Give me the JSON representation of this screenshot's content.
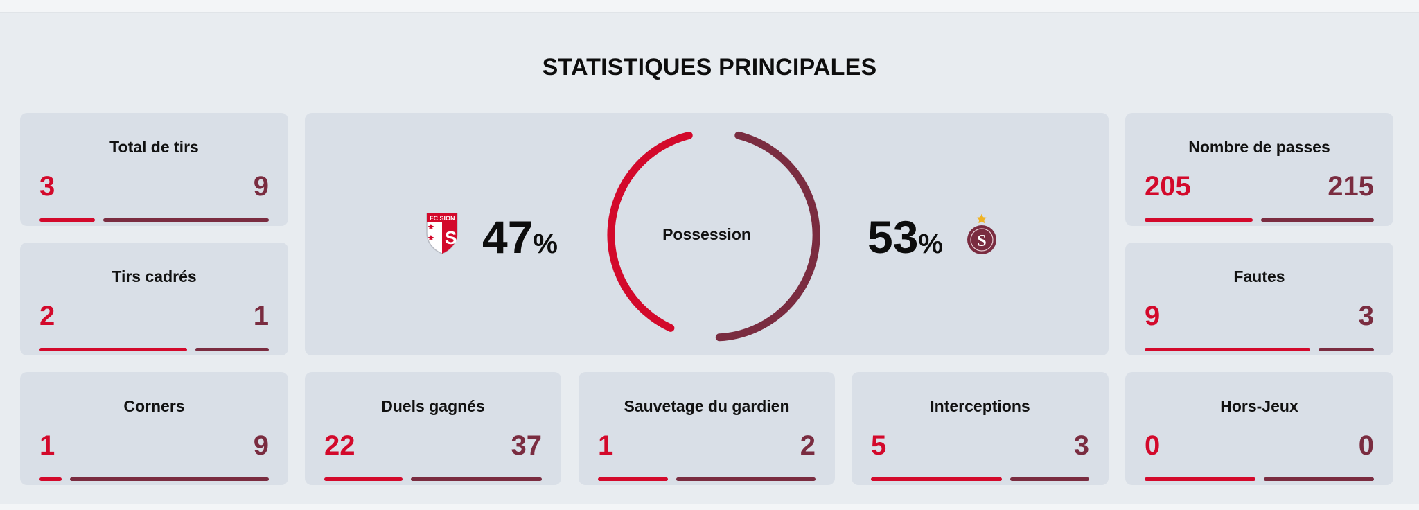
{
  "title": "STATISTIQUES PRINCIPALES",
  "colors": {
    "home": "#d3092b",
    "away": "#7a2c40"
  },
  "possession": {
    "label": "Possession",
    "home": {
      "value": "47",
      "unit": "%",
      "team_logo": "fc-sion-shield-icon",
      "logo_text": "FC SION",
      "logo_letter": "S"
    },
    "away": {
      "value": "53",
      "unit": "%",
      "team_logo": "servette-crest-icon",
      "logo_letter": "S"
    }
  },
  "stats": [
    {
      "key": "shots",
      "label": "Total de tirs",
      "home": "3",
      "away": "9"
    },
    {
      "key": "shots-on-target",
      "label": "Tirs cadrés",
      "home": "2",
      "away": "1"
    },
    {
      "key": "passes",
      "label": "Nombre de passes",
      "home": "205",
      "away": "215"
    },
    {
      "key": "fouls",
      "label": "Fautes",
      "home": "9",
      "away": "3"
    },
    {
      "key": "corners",
      "label": "Corners",
      "home": "1",
      "away": "9"
    },
    {
      "key": "duels",
      "label": "Duels gagnés",
      "home": "22",
      "away": "37"
    },
    {
      "key": "saves",
      "label": "Sauvetage du gardien",
      "home": "1",
      "away": "2"
    },
    {
      "key": "interceptions",
      "label": "Interceptions",
      "home": "5",
      "away": "3"
    },
    {
      "key": "offsides",
      "label": "Hors-Jeux",
      "home": "0",
      "away": "0"
    }
  ]
}
